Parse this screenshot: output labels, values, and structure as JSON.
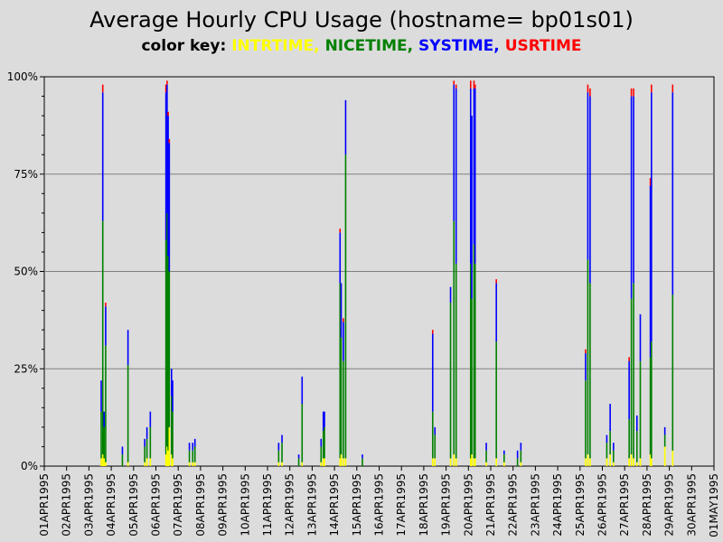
{
  "chart_data": {
    "type": "bar",
    "stacked": true,
    "title": "Average Hourly CPU Usage (hostname= bp01s01)",
    "legend_prefix": "color key:",
    "legend_placement": "top",
    "series": [
      {
        "name": "INTRTIME",
        "color": "#ffff00"
      },
      {
        "name": "NICETIME",
        "color": "#008000"
      },
      {
        "name": "SYSTIME",
        "color": "#0000ff"
      },
      {
        "name": "USRTIME",
        "color": "#ff0000"
      }
    ],
    "yticks": [
      "0%",
      "25%",
      "50%",
      "75%",
      "100%"
    ],
    "ylim": [
      0,
      100
    ],
    "xticks": [
      "01APR1995",
      "02APR1995",
      "03APR1995",
      "04APR1995",
      "05APR1995",
      "06APR1995",
      "07APR1995",
      "08APR1995",
      "09APR1995",
      "10APR1995",
      "11APR1995",
      "12APR1995",
      "13APR1995",
      "14APR1995",
      "15APR1995",
      "16APR1995",
      "17APR1995",
      "18APR1995",
      "19APR1995",
      "20APR1995",
      "21APR1995",
      "22APR1995",
      "23APR1995",
      "24APR1995",
      "25APR1995",
      "26APR1995",
      "27APR1995",
      "28APR1995",
      "29APR1995",
      "30APR1995",
      "01MAY1995"
    ],
    "grid": true,
    "x_unit": "day index from 01APR1995 (0 = 01APR1995 00:00)",
    "points": [
      {
        "x": 2.55,
        "intr": 2,
        "nice": 12,
        "sys": 8,
        "usr": 0
      },
      {
        "x": 2.62,
        "intr": 3,
        "nice": 60,
        "sys": 33,
        "usr": 2
      },
      {
        "x": 2.68,
        "intr": 2,
        "nice": 8,
        "sys": 4,
        "usr": 0
      },
      {
        "x": 2.75,
        "intr": 1,
        "nice": 30,
        "sys": 10,
        "usr": 1
      },
      {
        "x": 3.5,
        "intr": 0,
        "nice": 3,
        "sys": 2,
        "usr": 0
      },
      {
        "x": 3.75,
        "intr": 1,
        "nice": 25,
        "sys": 9,
        "usr": 0
      },
      {
        "x": 4.5,
        "intr": 1,
        "nice": 4,
        "sys": 2,
        "usr": 0
      },
      {
        "x": 4.6,
        "intr": 2,
        "nice": 5,
        "sys": 3,
        "usr": 0
      },
      {
        "x": 4.75,
        "intr": 2,
        "nice": 8,
        "sys": 4,
        "usr": 0
      },
      {
        "x": 5.45,
        "intr": 3,
        "nice": 55,
        "sys": 38,
        "usr": 2
      },
      {
        "x": 5.5,
        "intr": 5,
        "nice": 60,
        "sys": 33,
        "usr": 1
      },
      {
        "x": 5.55,
        "intr": 4,
        "nice": 50,
        "sys": 36,
        "usr": 1
      },
      {
        "x": 5.6,
        "intr": 10,
        "nice": 40,
        "sys": 33,
        "usr": 1
      },
      {
        "x": 5.7,
        "intr": 3,
        "nice": 15,
        "sys": 7,
        "usr": 0
      },
      {
        "x": 5.75,
        "intr": 2,
        "nice": 12,
        "sys": 8,
        "usr": 0
      },
      {
        "x": 6.5,
        "intr": 1,
        "nice": 3,
        "sys": 2,
        "usr": 0
      },
      {
        "x": 6.65,
        "intr": 1,
        "nice": 3,
        "sys": 2,
        "usr": 0
      },
      {
        "x": 6.75,
        "intr": 1,
        "nice": 4,
        "sys": 2,
        "usr": 0
      },
      {
        "x": 10.5,
        "intr": 1,
        "nice": 3,
        "sys": 2,
        "usr": 0
      },
      {
        "x": 10.65,
        "intr": 1,
        "nice": 5,
        "sys": 2,
        "usr": 0
      },
      {
        "x": 11.4,
        "intr": 0,
        "nice": 2,
        "sys": 1,
        "usr": 0
      },
      {
        "x": 11.55,
        "intr": 1,
        "nice": 15,
        "sys": 7,
        "usr": 0
      },
      {
        "x": 12.4,
        "intr": 1,
        "nice": 4,
        "sys": 2,
        "usr": 0
      },
      {
        "x": 12.5,
        "intr": 2,
        "nice": 7,
        "sys": 5,
        "usr": 0
      },
      {
        "x": 12.55,
        "intr": 2,
        "nice": 8,
        "sys": 4,
        "usr": 0
      },
      {
        "x": 13.25,
        "intr": 2,
        "nice": 45,
        "sys": 13,
        "usr": 1
      },
      {
        "x": 13.3,
        "intr": 3,
        "nice": 30,
        "sys": 14,
        "usr": 0
      },
      {
        "x": 13.4,
        "intr": 2,
        "nice": 25,
        "sys": 10,
        "usr": 1
      },
      {
        "x": 13.5,
        "intr": 2,
        "nice": 78,
        "sys": 14,
        "usr": 0
      },
      {
        "x": 14.25,
        "intr": 0,
        "nice": 2,
        "sys": 1,
        "usr": 0
      },
      {
        "x": 17.4,
        "intr": 2,
        "nice": 12,
        "sys": 20,
        "usr": 1
      },
      {
        "x": 17.5,
        "intr": 2,
        "nice": 6,
        "sys": 2,
        "usr": 0
      },
      {
        "x": 18.2,
        "intr": 2,
        "nice": 40,
        "sys": 4,
        "usr": 0
      },
      {
        "x": 18.35,
        "intr": 3,
        "nice": 60,
        "sys": 35,
        "usr": 1
      },
      {
        "x": 18.45,
        "intr": 2,
        "nice": 50,
        "sys": 45,
        "usr": 1
      },
      {
        "x": 19.1,
        "intr": 2,
        "nice": 50,
        "sys": 45,
        "usr": 2
      },
      {
        "x": 19.15,
        "intr": 3,
        "nice": 40,
        "sys": 47,
        "usr": 0
      },
      {
        "x": 19.25,
        "intr": 2,
        "nice": 55,
        "sys": 40,
        "usr": 2
      },
      {
        "x": 19.3,
        "intr": 2,
        "nice": 50,
        "sys": 45,
        "usr": 1
      },
      {
        "x": 19.8,
        "intr": 1,
        "nice": 3,
        "sys": 2,
        "usr": 0
      },
      {
        "x": 20.25,
        "intr": 2,
        "nice": 30,
        "sys": 15,
        "usr": 1
      },
      {
        "x": 20.6,
        "intr": 1,
        "nice": 2,
        "sys": 1,
        "usr": 0
      },
      {
        "x": 21.2,
        "intr": 0,
        "nice": 2,
        "sys": 2,
        "usr": 0
      },
      {
        "x": 21.35,
        "intr": 1,
        "nice": 3,
        "sys": 2,
        "usr": 0
      },
      {
        "x": 24.25,
        "intr": 2,
        "nice": 20,
        "sys": 7,
        "usr": 1
      },
      {
        "x": 24.35,
        "intr": 3,
        "nice": 50,
        "sys": 43,
        "usr": 2
      },
      {
        "x": 24.45,
        "intr": 2,
        "nice": 45,
        "sys": 48,
        "usr": 2
      },
      {
        "x": 25.2,
        "intr": 2,
        "nice": 4,
        "sys": 2,
        "usr": 0
      },
      {
        "x": 25.35,
        "intr": 3,
        "nice": 6,
        "sys": 7,
        "usr": 0
      },
      {
        "x": 25.5,
        "intr": 1,
        "nice": 3,
        "sys": 2,
        "usr": 0
      },
      {
        "x": 26.2,
        "intr": 2,
        "nice": 10,
        "sys": 15,
        "usr": 1
      },
      {
        "x": 26.3,
        "intr": 3,
        "nice": 40,
        "sys": 52,
        "usr": 2
      },
      {
        "x": 26.4,
        "intr": 2,
        "nice": 45,
        "sys": 48,
        "usr": 2
      },
      {
        "x": 26.55,
        "intr": 1,
        "nice": 8,
        "sys": 4,
        "usr": 0
      },
      {
        "x": 26.7,
        "intr": 2,
        "nice": 25,
        "sys": 12,
        "usr": 0
      },
      {
        "x": 27.15,
        "intr": 3,
        "nice": 25,
        "sys": 44,
        "usr": 2
      },
      {
        "x": 27.2,
        "intr": 2,
        "nice": 30,
        "sys": 64,
        "usr": 2
      },
      {
        "x": 27.8,
        "intr": 5,
        "nice": 3,
        "sys": 2,
        "usr": 0
      },
      {
        "x": 28.15,
        "intr": 4,
        "nice": 40,
        "sys": 52,
        "usr": 2
      }
    ]
  }
}
